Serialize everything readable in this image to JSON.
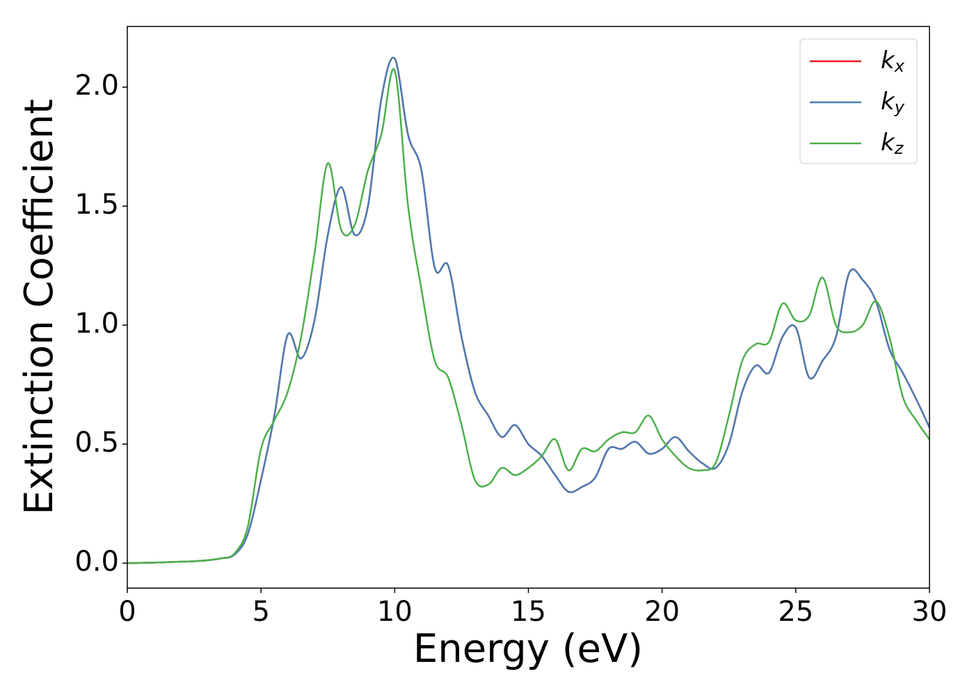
{
  "chart_data": {
    "type": "line",
    "xlabel": "Energy (eV)",
    "ylabel": "Extinction Coefficient",
    "x": [
      0,
      0.5,
      1,
      1.5,
      2,
      2.5,
      3,
      3.5,
      4,
      4.5,
      5,
      5.5,
      6,
      6.5,
      7,
      7.5,
      8,
      8.5,
      9,
      9.5,
      10,
      10.5,
      11,
      11.5,
      12,
      12.5,
      13,
      13.5,
      14,
      14.5,
      15,
      15.5,
      16,
      16.5,
      17,
      17.5,
      18,
      18.5,
      19,
      19.5,
      20,
      20.5,
      21,
      21.5,
      22,
      22.5,
      23,
      23.5,
      24,
      24.5,
      25,
      25.5,
      26,
      26.5,
      27,
      27.5,
      28,
      28.5,
      29,
      29.5,
      30
    ],
    "series": [
      {
        "name": "kx",
        "color": "#e41a1c",
        "values": [
          0,
          0.001,
          0.002,
          0.004,
          0.006,
          0.008,
          0.012,
          0.02,
          0.035,
          0.12,
          0.35,
          0.62,
          0.96,
          0.86,
          1.02,
          1.38,
          1.58,
          1.38,
          1.5,
          1.95,
          2.12,
          1.8,
          1.65,
          1.24,
          1.25,
          0.95,
          0.72,
          0.62,
          0.53,
          0.58,
          0.5,
          0.45,
          0.37,
          0.3,
          0.32,
          0.36,
          0.48,
          0.48,
          0.51,
          0.46,
          0.48,
          0.53,
          0.47,
          0.42,
          0.4,
          0.5,
          0.72,
          0.83,
          0.8,
          0.95,
          0.99,
          0.78,
          0.85,
          0.95,
          1.22,
          1.19,
          1.1,
          0.9,
          0.8,
          0.69,
          0.57
        ]
      },
      {
        "name": "ky",
        "color": "#4a7db5",
        "values": [
          0,
          0.001,
          0.002,
          0.004,
          0.006,
          0.008,
          0.012,
          0.02,
          0.035,
          0.12,
          0.35,
          0.62,
          0.96,
          0.86,
          1.02,
          1.38,
          1.58,
          1.38,
          1.5,
          1.95,
          2.12,
          1.8,
          1.65,
          1.24,
          1.25,
          0.95,
          0.72,
          0.62,
          0.53,
          0.58,
          0.5,
          0.45,
          0.37,
          0.3,
          0.32,
          0.36,
          0.48,
          0.48,
          0.51,
          0.46,
          0.48,
          0.53,
          0.47,
          0.42,
          0.4,
          0.5,
          0.72,
          0.83,
          0.8,
          0.95,
          0.99,
          0.78,
          0.85,
          0.95,
          1.22,
          1.19,
          1.1,
          0.9,
          0.8,
          0.69,
          0.57
        ]
      },
      {
        "name": "kz",
        "color": "#4daf4a",
        "values": [
          0,
          0.001,
          0.002,
          0.004,
          0.006,
          0.008,
          0.012,
          0.02,
          0.04,
          0.15,
          0.48,
          0.6,
          0.72,
          0.95,
          1.3,
          1.68,
          1.4,
          1.42,
          1.65,
          1.8,
          2.07,
          1.5,
          1.15,
          0.85,
          0.78,
          0.58,
          0.35,
          0.33,
          0.4,
          0.37,
          0.4,
          0.45,
          0.52,
          0.39,
          0.48,
          0.47,
          0.52,
          0.55,
          0.55,
          0.62,
          0.52,
          0.45,
          0.4,
          0.39,
          0.42,
          0.62,
          0.85,
          0.92,
          0.93,
          1.09,
          1.02,
          1.04,
          1.2,
          1.0,
          0.97,
          1.0,
          1.1,
          0.95,
          0.7,
          0.6,
          0.52
        ]
      }
    ],
    "xlim": [
      0,
      30
    ],
    "xticks": [
      0,
      5,
      10,
      15,
      20,
      25,
      30
    ],
    "ylim": [
      -0.105,
      2.255
    ],
    "yticks": [
      {
        "value": 0,
        "label": "0.0"
      },
      0.5,
      {
        "value": 1,
        "label": "1.0"
      },
      1.5,
      {
        "value": 2,
        "label": "2.0"
      }
    ],
    "legend": "upper right",
    "grid": false
  }
}
